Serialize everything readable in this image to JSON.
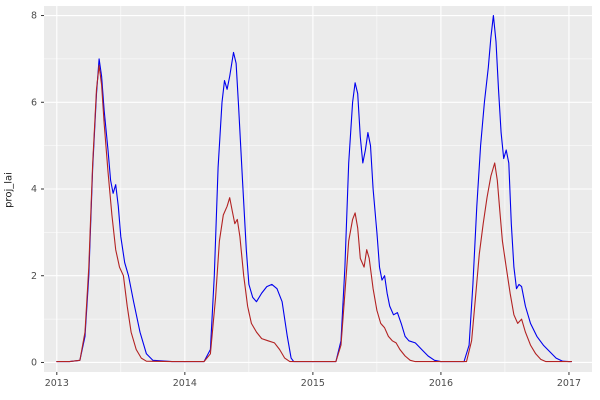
{
  "chart_data": {
    "type": "line",
    "title": "",
    "xlabel": "",
    "ylabel": "proj_lai",
    "xlim": [
      2012.9,
      2017.18
    ],
    "ylim": [
      -0.22,
      8.22
    ],
    "x_ticks": [
      2013,
      2014,
      2015,
      2016,
      2017
    ],
    "x_minor_ticks": [
      2013.5,
      2014.5,
      2015.5,
      2016.5
    ],
    "y_ticks": [
      0,
      2,
      4,
      6,
      8
    ],
    "y_minor_ticks": [
      1,
      3,
      5,
      7
    ],
    "grid": true,
    "legend": "none",
    "panel_background": "#EBEBEB",
    "grid_major_color": "#FFFFFF",
    "grid_minor_color": "#FFFFFF",
    "tick_label_color": "#4D4D4D",
    "series": [
      {
        "name": "series-blue",
        "color": "#0000EE",
        "points": [
          [
            2013.0,
            0.02
          ],
          [
            2013.1,
            0.02
          ],
          [
            2013.18,
            0.05
          ],
          [
            2013.22,
            0.6
          ],
          [
            2013.25,
            2.0
          ],
          [
            2013.28,
            4.5
          ],
          [
            2013.31,
            6.2
          ],
          [
            2013.33,
            7.0
          ],
          [
            2013.35,
            6.6
          ],
          [
            2013.37,
            5.8
          ],
          [
            2013.4,
            4.9
          ],
          [
            2013.42,
            4.2
          ],
          [
            2013.44,
            3.9
          ],
          [
            2013.46,
            4.1
          ],
          [
            2013.48,
            3.6
          ],
          [
            2013.5,
            2.9
          ],
          [
            2013.53,
            2.3
          ],
          [
            2013.56,
            2.0
          ],
          [
            2013.6,
            1.4
          ],
          [
            2013.65,
            0.7
          ],
          [
            2013.7,
            0.2
          ],
          [
            2013.75,
            0.05
          ],
          [
            2013.9,
            0.02
          ],
          [
            2014.0,
            0.02
          ],
          [
            2014.15,
            0.02
          ],
          [
            2014.2,
            0.3
          ],
          [
            2014.23,
            2.0
          ],
          [
            2014.26,
            4.5
          ],
          [
            2014.29,
            6.0
          ],
          [
            2014.31,
            6.5
          ],
          [
            2014.33,
            6.3
          ],
          [
            2014.35,
            6.6
          ],
          [
            2014.38,
            7.15
          ],
          [
            2014.4,
            6.9
          ],
          [
            2014.42,
            5.9
          ],
          [
            2014.45,
            4.2
          ],
          [
            2014.48,
            2.6
          ],
          [
            2014.5,
            1.8
          ],
          [
            2014.53,
            1.5
          ],
          [
            2014.56,
            1.4
          ],
          [
            2014.6,
            1.6
          ],
          [
            2014.64,
            1.75
          ],
          [
            2014.68,
            1.8
          ],
          [
            2014.72,
            1.7
          ],
          [
            2014.76,
            1.4
          ],
          [
            2014.8,
            0.6
          ],
          [
            2014.83,
            0.1
          ],
          [
            2014.85,
            0.02
          ],
          [
            2015.0,
            0.02
          ],
          [
            2015.18,
            0.02
          ],
          [
            2015.22,
            0.5
          ],
          [
            2015.25,
            2.2
          ],
          [
            2015.28,
            4.6
          ],
          [
            2015.31,
            6.0
          ],
          [
            2015.33,
            6.45
          ],
          [
            2015.35,
            6.2
          ],
          [
            2015.37,
            5.2
          ],
          [
            2015.39,
            4.6
          ],
          [
            2015.41,
            4.9
          ],
          [
            2015.43,
            5.3
          ],
          [
            2015.45,
            5.0
          ],
          [
            2015.47,
            4.0
          ],
          [
            2015.5,
            3.0
          ],
          [
            2015.52,
            2.2
          ],
          [
            2015.54,
            1.9
          ],
          [
            2015.56,
            2.0
          ],
          [
            2015.58,
            1.6
          ],
          [
            2015.6,
            1.3
          ],
          [
            2015.63,
            1.1
          ],
          [
            2015.66,
            1.15
          ],
          [
            2015.69,
            0.9
          ],
          [
            2015.72,
            0.6
          ],
          [
            2015.75,
            0.5
          ],
          [
            2015.8,
            0.45
          ],
          [
            2015.85,
            0.3
          ],
          [
            2015.9,
            0.15
          ],
          [
            2015.95,
            0.05
          ],
          [
            2016.0,
            0.02
          ],
          [
            2016.18,
            0.02
          ],
          [
            2016.22,
            0.4
          ],
          [
            2016.25,
            1.8
          ],
          [
            2016.28,
            3.6
          ],
          [
            2016.31,
            5.0
          ],
          [
            2016.34,
            6.0
          ],
          [
            2016.37,
            6.8
          ],
          [
            2016.39,
            7.5
          ],
          [
            2016.41,
            8.0
          ],
          [
            2016.43,
            7.4
          ],
          [
            2016.45,
            6.3
          ],
          [
            2016.47,
            5.3
          ],
          [
            2016.49,
            4.7
          ],
          [
            2016.51,
            4.9
          ],
          [
            2016.53,
            4.6
          ],
          [
            2016.55,
            3.2
          ],
          [
            2016.57,
            2.2
          ],
          [
            2016.59,
            1.7
          ],
          [
            2016.61,
            1.8
          ],
          [
            2016.63,
            1.75
          ],
          [
            2016.66,
            1.3
          ],
          [
            2016.7,
            0.9
          ],
          [
            2016.75,
            0.6
          ],
          [
            2016.8,
            0.4
          ],
          [
            2016.85,
            0.25
          ],
          [
            2016.9,
            0.1
          ],
          [
            2016.95,
            0.03
          ],
          [
            2017.0,
            0.02
          ],
          [
            2017.02,
            0.02
          ]
        ]
      },
      {
        "name": "series-red",
        "color": "#B22222",
        "points": [
          [
            2013.0,
            0.02
          ],
          [
            2013.1,
            0.02
          ],
          [
            2013.18,
            0.05
          ],
          [
            2013.22,
            0.7
          ],
          [
            2013.25,
            2.2
          ],
          [
            2013.28,
            4.6
          ],
          [
            2013.31,
            6.3
          ],
          [
            2013.33,
            6.85
          ],
          [
            2013.35,
            6.4
          ],
          [
            2013.37,
            5.5
          ],
          [
            2013.4,
            4.4
          ],
          [
            2013.43,
            3.4
          ],
          [
            2013.46,
            2.6
          ],
          [
            2013.49,
            2.2
          ],
          [
            2013.52,
            2.0
          ],
          [
            2013.55,
            1.3
          ],
          [
            2013.58,
            0.7
          ],
          [
            2013.62,
            0.3
          ],
          [
            2013.66,
            0.1
          ],
          [
            2013.7,
            0.03
          ],
          [
            2013.9,
            0.02
          ],
          [
            2014.0,
            0.02
          ],
          [
            2014.15,
            0.02
          ],
          [
            2014.2,
            0.2
          ],
          [
            2014.24,
            1.5
          ],
          [
            2014.27,
            2.8
          ],
          [
            2014.3,
            3.4
          ],
          [
            2014.33,
            3.6
          ],
          [
            2014.35,
            3.8
          ],
          [
            2014.37,
            3.5
          ],
          [
            2014.39,
            3.2
          ],
          [
            2014.41,
            3.3
          ],
          [
            2014.43,
            2.9
          ],
          [
            2014.46,
            2.0
          ],
          [
            2014.49,
            1.3
          ],
          [
            2014.52,
            0.9
          ],
          [
            2014.56,
            0.7
          ],
          [
            2014.6,
            0.55
          ],
          [
            2014.65,
            0.5
          ],
          [
            2014.7,
            0.45
          ],
          [
            2014.74,
            0.3
          ],
          [
            2014.78,
            0.1
          ],
          [
            2014.82,
            0.02
          ],
          [
            2015.0,
            0.02
          ],
          [
            2015.18,
            0.02
          ],
          [
            2015.22,
            0.4
          ],
          [
            2015.25,
            1.6
          ],
          [
            2015.28,
            2.8
          ],
          [
            2015.31,
            3.3
          ],
          [
            2015.33,
            3.45
          ],
          [
            2015.35,
            3.1
          ],
          [
            2015.37,
            2.4
          ],
          [
            2015.4,
            2.2
          ],
          [
            2015.42,
            2.6
          ],
          [
            2015.44,
            2.4
          ],
          [
            2015.47,
            1.7
          ],
          [
            2015.5,
            1.2
          ],
          [
            2015.53,
            0.9
          ],
          [
            2015.56,
            0.8
          ],
          [
            2015.59,
            0.6
          ],
          [
            2015.62,
            0.5
          ],
          [
            2015.65,
            0.45
          ],
          [
            2015.68,
            0.3
          ],
          [
            2015.72,
            0.15
          ],
          [
            2015.76,
            0.05
          ],
          [
            2015.8,
            0.02
          ],
          [
            2016.0,
            0.02
          ],
          [
            2016.2,
            0.02
          ],
          [
            2016.24,
            0.5
          ],
          [
            2016.27,
            1.5
          ],
          [
            2016.3,
            2.5
          ],
          [
            2016.33,
            3.2
          ],
          [
            2016.36,
            3.8
          ],
          [
            2016.39,
            4.3
          ],
          [
            2016.42,
            4.6
          ],
          [
            2016.44,
            4.2
          ],
          [
            2016.46,
            3.5
          ],
          [
            2016.48,
            2.8
          ],
          [
            2016.51,
            2.2
          ],
          [
            2016.54,
            1.6
          ],
          [
            2016.57,
            1.1
          ],
          [
            2016.6,
            0.9
          ],
          [
            2016.63,
            1.0
          ],
          [
            2016.66,
            0.7
          ],
          [
            2016.7,
            0.4
          ],
          [
            2016.74,
            0.2
          ],
          [
            2016.78,
            0.07
          ],
          [
            2016.82,
            0.02
          ],
          [
            2017.0,
            0.02
          ],
          [
            2017.02,
            0.02
          ]
        ]
      }
    ]
  }
}
